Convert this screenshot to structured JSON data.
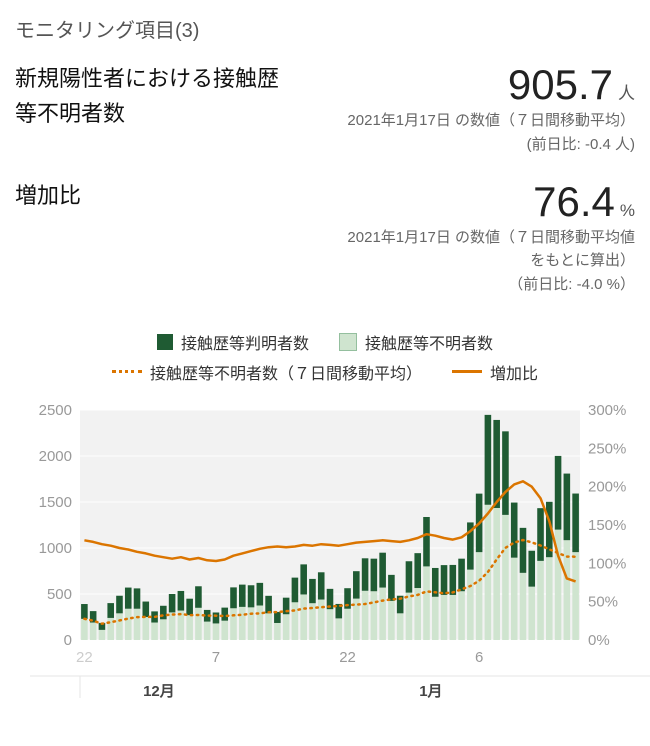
{
  "page": {
    "kicker": "モニタリング項目(3)",
    "metric1": {
      "title": "新規陽性者における接触歴等不明者数",
      "value": "905.7",
      "unit": "人",
      "captions": [
        "2021年1月17日 の数値（７日間移動平均）",
        "(前日比: -0.4 人)"
      ]
    },
    "metric2": {
      "title": "増加比",
      "value": "76.4",
      "unit": "%",
      "captions": [
        "2021年1月17日 の数値（７日間移動平均値",
        "をもとに算出）",
        "（前日比: -4.0 %）"
      ]
    }
  },
  "colors": {
    "dark_green": "#1f5b33",
    "light_green": "#cfe4cf",
    "orange": "#db7500"
  },
  "chart_data": {
    "type": "bar",
    "subtype": "stacked bars with two orange line overlays (dual y-axis)",
    "x": [
      "11/22",
      "11/23",
      "11/24",
      "11/25",
      "11/26",
      "11/27",
      "11/28",
      "11/29",
      "11/30",
      "12/1",
      "12/2",
      "12/3",
      "12/4",
      "12/5",
      "12/6",
      "12/7",
      "12/8",
      "12/9",
      "12/10",
      "12/11",
      "12/12",
      "12/13",
      "12/14",
      "12/15",
      "12/16",
      "12/17",
      "12/18",
      "12/19",
      "12/20",
      "12/21",
      "12/22",
      "12/23",
      "12/24",
      "12/25",
      "12/26",
      "12/27",
      "12/28",
      "12/29",
      "12/30",
      "12/31",
      "1/1",
      "1/2",
      "1/3",
      "1/4",
      "1/5",
      "1/6",
      "1/7",
      "1/8",
      "1/9",
      "1/10",
      "1/11",
      "1/12",
      "1/13",
      "1/14",
      "1/15",
      "1/16",
      "1/17"
    ],
    "bars": {
      "unknown": {
        "label": "接触歴等不明者数",
        "color_key": "light_green",
        "stack_position": "bottom",
        "values": [
          230,
          190,
          110,
          240,
          290,
          340,
          340,
          250,
          190,
          225,
          300,
          320,
          270,
          350,
          200,
          180,
          210,
          345,
          360,
          355,
          375,
          290,
          185,
          280,
          410,
          495,
          400,
          440,
          335,
          235,
          340,
          450,
          535,
          530,
          570,
          425,
          290,
          515,
          565,
          800,
          470,
          490,
          490,
          530,
          765,
          955,
          1470,
          1435,
          1360,
          895,
          730,
          580,
          860,
          900,
          1200,
          1085,
          955
        ]
      },
      "known": {
        "label": "接触歴等判明者数",
        "color_key": "dark_green",
        "stack_position": "top",
        "values": [
          161,
          124,
          76,
          161,
          191,
          230,
          221,
          168,
          121,
          147,
          200,
          213,
          179,
          234,
          127,
          119,
          142,
          227,
          242,
          240,
          246,
          190,
          120,
          180,
          268,
          327,
          264,
          296,
          221,
          157,
          223,
          298,
          353,
          354,
          379,
          283,
          191,
          341,
          379,
          537,
          313,
          324,
          326,
          354,
          513,
          636,
          977,
          957,
          908,
          599,
          489,
          390,
          573,
          602,
          801,
          724,
          637
        ]
      }
    },
    "lines": {
      "ma": {
        "label": "接触歴等不明者数（７日間移動平均）",
        "style": "dotted",
        "axis": "left",
        "values": [
          230,
          210,
          177,
          193,
          212,
          233,
          249,
          251,
          251,
          268,
          276,
          281,
          271,
          272,
          265,
          264,
          261,
          268,
          274,
          286,
          289,
          302,
          303,
          313,
          322,
          341,
          348,
          357,
          364,
          371,
          379,
          385,
          391,
          409,
          428,
          441,
          449,
          474,
          490,
          528,
          519,
          508,
          517,
          551,
          587,
          643,
          739,
          876,
          1001,
          1059,
          1087,
          1061,
          1027,
          986,
          946,
          906.1,
          905.7
        ]
      },
      "ratio": {
        "label": "増加比",
        "style": "solid",
        "axis": "right",
        "values": [
          130,
          128,
          125,
          123,
          120,
          118,
          115,
          113,
          110,
          108,
          106,
          108,
          105,
          107,
          104,
          103,
          105,
          110,
          113,
          116,
          119,
          121,
          122,
          121,
          122,
          124,
          123,
          125,
          124,
          123,
          125,
          127,
          128,
          129,
          130,
          129,
          128,
          130,
          133,
          138,
          136,
          133,
          131,
          134,
          142,
          152,
          165,
          180,
          193,
          203,
          207,
          200,
          185,
          155,
          110,
          80.4,
          76.4
        ]
      }
    },
    "left_axis": {
      "max": 2500,
      "ticks": [
        0,
        500,
        1000,
        1500,
        2000,
        2500
      ]
    },
    "right_axis": {
      "max": 300,
      "ticks": [
        0,
        50,
        100,
        150,
        200,
        250,
        300
      ],
      "suffix": "%"
    },
    "x_ticks": [
      {
        "index": 0,
        "label": "22",
        "muted": true
      },
      {
        "index": 15,
        "label": "7",
        "muted": false
      },
      {
        "index": 30,
        "label": "22",
        "muted": false
      },
      {
        "index": 45,
        "label": "6",
        "muted": false
      }
    ],
    "month_labels": [
      {
        "index": 9,
        "label": "12月"
      },
      {
        "index": 40,
        "label": "1月"
      }
    ],
    "grid": true,
    "legend_position": "top"
  }
}
